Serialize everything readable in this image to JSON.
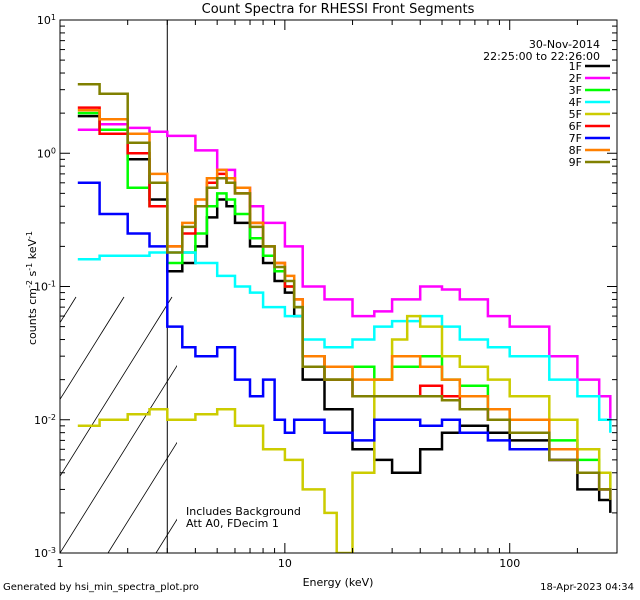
{
  "chart_data": {
    "type": "line",
    "title": "Count Spectra for RHESSI Front Segments",
    "xlabel": "Energy (keV)",
    "ylabel": "counts cm-2 s-1 keV-1",
    "xscale": "log",
    "yscale": "log",
    "xlim": [
      1,
      300
    ],
    "ylim": [
      0.001,
      10
    ],
    "xticks": [
      "1",
      "10",
      "100"
    ],
    "yticks": [
      "10-3",
      "10-2",
      "10-1",
      "100",
      "101"
    ],
    "date": "30-Nov-2014",
    "time_range": "22:25:00 to 22:26:00",
    "note_lines": [
      "Includes Background",
      "Att A0, FDecim 1"
    ],
    "hatched_region_upper_keV": 3,
    "series": [
      {
        "name": "1F",
        "color": "#000000",
        "x": [
          1.2,
          1.5,
          2,
          2.5,
          3,
          3.5,
          4,
          4.5,
          5,
          5.5,
          6,
          7,
          8,
          9,
          10,
          11,
          12,
          15,
          20,
          25,
          30,
          40,
          50,
          60,
          80,
          100,
          150,
          200,
          250,
          280
        ],
        "y": [
          1.9,
          1.5,
          0.9,
          0.45,
          0.13,
          0.15,
          0.2,
          0.33,
          0.45,
          0.4,
          0.3,
          0.2,
          0.15,
          0.11,
          0.09,
          0.06,
          0.02,
          0.012,
          0.006,
          0.005,
          0.004,
          0.006,
          0.008,
          0.009,
          0.008,
          0.007,
          0.005,
          0.003,
          0.0025,
          0.002
        ]
      },
      {
        "name": "2F",
        "color": "#ff00ff",
        "x": [
          1.2,
          1.5,
          2,
          2.5,
          3,
          4,
          5,
          6,
          7,
          8,
          10,
          12,
          15,
          20,
          25,
          30,
          40,
          50,
          60,
          80,
          100,
          150,
          200,
          250,
          280
        ],
        "y": [
          1.5,
          1.65,
          1.55,
          1.45,
          1.35,
          1.05,
          0.75,
          0.55,
          0.4,
          0.3,
          0.2,
          0.1,
          0.08,
          0.06,
          0.065,
          0.08,
          0.1,
          0.095,
          0.08,
          0.06,
          0.05,
          0.03,
          0.02,
          0.015,
          0.01
        ]
      },
      {
        "name": "3F",
        "color": "#00ff00",
        "x": [
          1.2,
          1.5,
          2,
          2.5,
          3,
          3.5,
          4,
          4.5,
          5,
          5.5,
          6,
          7,
          8,
          9,
          10,
          11,
          12,
          15,
          20,
          25,
          30,
          40,
          50,
          60,
          80,
          100,
          150,
          200,
          250,
          280
        ],
        "y": [
          2.0,
          1.5,
          0.55,
          0.4,
          0.15,
          0.18,
          0.25,
          0.4,
          0.5,
          0.45,
          0.35,
          0.23,
          0.17,
          0.13,
          0.1,
          0.07,
          0.03,
          0.02,
          0.025,
          0.02,
          0.025,
          0.03,
          0.02,
          0.018,
          0.012,
          0.01,
          0.007,
          0.005,
          0.004,
          0.003
        ]
      },
      {
        "name": "4F",
        "color": "#00ffff",
        "x": [
          1.2,
          1.5,
          2,
          2.5,
          3,
          4,
          5,
          6,
          7,
          8,
          10,
          12,
          15,
          20,
          25,
          30,
          40,
          50,
          60,
          80,
          100,
          150,
          200,
          250,
          280
        ],
        "y": [
          0.16,
          0.17,
          0.17,
          0.18,
          0.18,
          0.15,
          0.12,
          0.1,
          0.09,
          0.07,
          0.06,
          0.04,
          0.035,
          0.04,
          0.05,
          0.055,
          0.06,
          0.05,
          0.04,
          0.035,
          0.03,
          0.02,
          0.015,
          0.01,
          0.008
        ]
      },
      {
        "name": "5F",
        "color": "#cccc00",
        "x": [
          1.2,
          1.5,
          2,
          2.5,
          3,
          4,
          5,
          6,
          8,
          10,
          12,
          15,
          17,
          20,
          25,
          30,
          35,
          40,
          50,
          60,
          80,
          100,
          150,
          200,
          250,
          280
        ],
        "y": [
          0.009,
          0.01,
          0.011,
          0.012,
          0.01,
          0.011,
          0.012,
          0.009,
          0.006,
          0.005,
          0.003,
          0.002,
          0.001,
          0.004,
          0.02,
          0.04,
          0.06,
          0.05,
          0.03,
          0.025,
          0.02,
          0.015,
          0.01,
          0.006,
          0.004,
          0.003
        ]
      },
      {
        "name": "6F",
        "color": "#ff0000",
        "x": [
          1.2,
          1.5,
          2,
          2.5,
          3,
          3.5,
          4,
          4.5,
          5,
          5.5,
          6,
          7,
          8,
          9,
          10,
          11,
          12,
          15,
          20,
          25,
          30,
          40,
          50,
          60,
          80,
          100,
          150,
          200,
          250,
          280
        ],
        "y": [
          2.2,
          1.4,
          1.0,
          0.4,
          0.2,
          0.25,
          0.4,
          0.6,
          0.7,
          0.6,
          0.5,
          0.3,
          0.2,
          0.15,
          0.1,
          0.08,
          0.03,
          0.02,
          0.015,
          0.015,
          0.015,
          0.018,
          0.015,
          0.012,
          0.01,
          0.008,
          0.005,
          0.004,
          0.003,
          0.0025
        ]
      },
      {
        "name": "7F",
        "color": "#0000ff",
        "x": [
          1.2,
          1.5,
          2,
          2.5,
          3,
          3.5,
          4,
          5,
          6,
          7,
          8,
          9,
          10,
          11,
          12,
          15,
          20,
          25,
          30,
          40,
          50,
          60,
          80,
          100,
          150,
          200,
          250,
          280
        ],
        "y": [
          0.6,
          0.35,
          0.25,
          0.2,
          0.05,
          0.035,
          0.03,
          0.035,
          0.02,
          0.015,
          0.02,
          0.01,
          0.008,
          0.01,
          0.01,
          0.008,
          0.007,
          0.01,
          0.01,
          0.009,
          0.01,
          0.008,
          0.007,
          0.006,
          0.005,
          0.004,
          0.003,
          0.0025
        ]
      },
      {
        "name": "8F",
        "color": "#ff8000",
        "x": [
          1.2,
          1.5,
          2,
          2.5,
          3,
          3.5,
          4,
          4.5,
          5,
          5.5,
          6,
          7,
          8,
          9,
          10,
          11,
          12,
          15,
          20,
          25,
          30,
          40,
          50,
          60,
          80,
          100,
          150,
          200,
          250,
          280
        ],
        "y": [
          2.1,
          1.8,
          1.4,
          0.7,
          0.2,
          0.3,
          0.45,
          0.65,
          0.75,
          0.65,
          0.55,
          0.3,
          0.2,
          0.15,
          0.12,
          0.08,
          0.03,
          0.025,
          0.02,
          0.02,
          0.03,
          0.025,
          0.02,
          0.015,
          0.012,
          0.01,
          0.006,
          0.004,
          0.003,
          0.0025
        ]
      },
      {
        "name": "9F",
        "color": "#808000",
        "x": [
          1.2,
          1.5,
          2,
          2.5,
          3,
          3.5,
          4,
          4.5,
          5,
          5.5,
          6,
          7,
          8,
          9,
          10,
          11,
          12,
          15,
          20,
          25,
          30,
          40,
          50,
          60,
          80,
          100,
          150,
          200,
          250,
          280
        ],
        "y": [
          3.3,
          2.8,
          1.2,
          0.6,
          0.18,
          0.28,
          0.4,
          0.55,
          0.65,
          0.6,
          0.5,
          0.28,
          0.2,
          0.14,
          0.11,
          0.07,
          0.025,
          0.02,
          0.015,
          0.015,
          0.015,
          0.015,
          0.014,
          0.012,
          0.01,
          0.008,
          0.005,
          0.004,
          0.003,
          0.0025
        ]
      }
    ]
  },
  "footer": {
    "generated_by": "Generated by hsi_min_spectra_plot.pro",
    "timestamp": "18-Apr-2023 04:34"
  }
}
